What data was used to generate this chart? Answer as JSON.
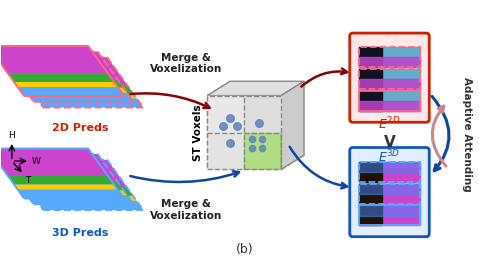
{
  "title": "(b)",
  "bg_color": "#ffffff",
  "label_2d": "2D Preds",
  "label_3d": "3D Preds",
  "merge_vox_top": "Merge &\nVoxelization",
  "merge_vox_bot": "Merge &\nVoxelization",
  "st_voxels_label": "ST Voxels",
  "adaptive_label": "Adaptive Attending",
  "v_label": "V",
  "red_color": "#cc2200",
  "blue_color": "#1155cc",
  "pink_border": "#ff6688",
  "sky_blue": "#55aaff",
  "green_patch": "#88cc44",
  "arrow_red": "#880000",
  "arrow_blue": "#1144aa",
  "arrow_pink": "#cc8888"
}
